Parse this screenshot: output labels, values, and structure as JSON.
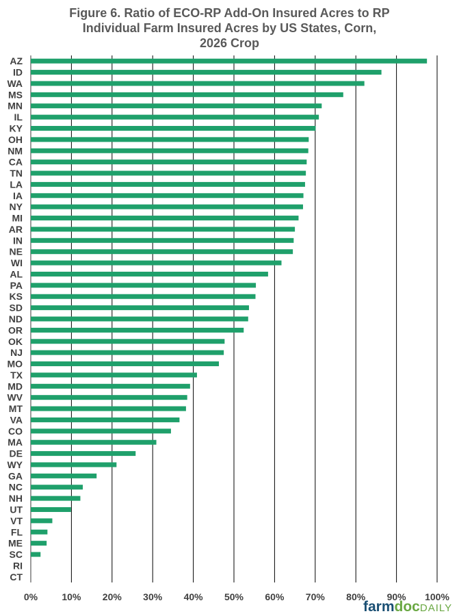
{
  "chart_data": {
    "type": "bar",
    "orientation": "horizontal",
    "title_lines": [
      "Figure 6. Ratio  of ECO-RP Add-On Insured Acres to RP",
      "Individual Farm Insured Acres by US States, Corn,",
      "2026 Crop"
    ],
    "categories": [
      "AZ",
      "ID",
      "WA",
      "MS",
      "MN",
      "IL",
      "KY",
      "OH",
      "NM",
      "CA",
      "TN",
      "LA",
      "IA",
      "NY",
      "MI",
      "AR",
      "IN",
      "NE",
      "WI",
      "AL",
      "PA",
      "KS",
      "SD",
      "ND",
      "OR",
      "OK",
      "NJ",
      "MO",
      "TX",
      "MD",
      "WV",
      "MT",
      "VA",
      "CO",
      "MA",
      "DE",
      "WY",
      "GA",
      "NC",
      "NH",
      "UT",
      "VT",
      "FL",
      "ME",
      "SC",
      "RI",
      "CT"
    ],
    "values": [
      97.5,
      86.3,
      82.1,
      76.9,
      71.6,
      70.9,
      70.1,
      68.4,
      68.3,
      67.9,
      67.7,
      67.5,
      67.1,
      67.0,
      65.9,
      65.0,
      64.7,
      64.5,
      61.7,
      58.4,
      55.4,
      55.3,
      53.7,
      53.5,
      52.4,
      47.7,
      47.5,
      46.3,
      40.9,
      39.2,
      38.5,
      38.2,
      36.6,
      34.5,
      30.9,
      25.8,
      21.1,
      16.2,
      12.8,
      12.2,
      9.9,
      5.3,
      4.1,
      3.9,
      2.4,
      0,
      0
    ],
    "x_ticks": [
      "0%",
      "10%",
      "20%",
      "30%",
      "40%",
      "50%",
      "60%",
      "70%",
      "80%",
      "90%",
      "100%"
    ],
    "xlim": [
      0,
      100
    ],
    "bar_color": "#1fa06b",
    "grid": "vertical gridlines"
  },
  "logo": {
    "part1": "farm",
    "part2": "doc",
    "part3": "DAILY"
  }
}
